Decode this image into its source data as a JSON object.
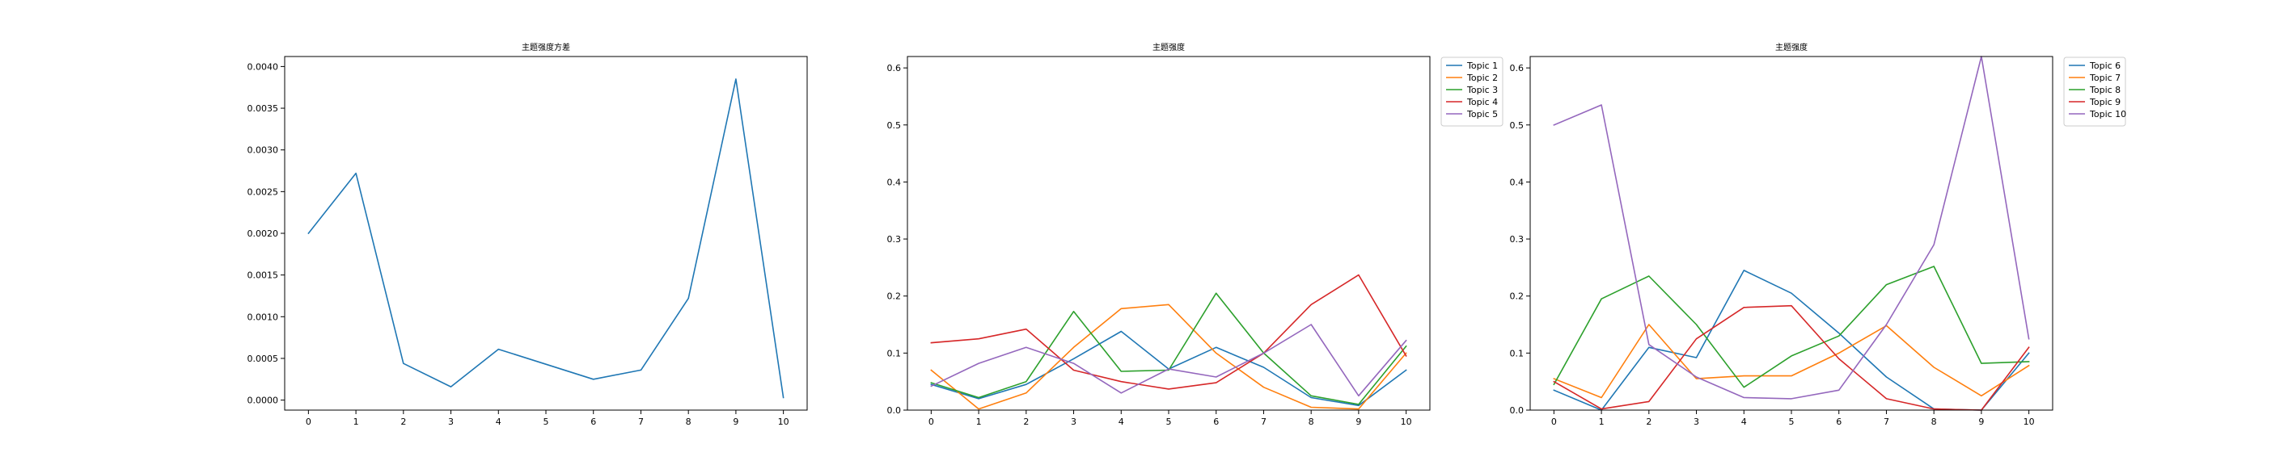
{
  "chart_data": [
    {
      "type": "line",
      "title": "主题强度方差",
      "xlabel": "",
      "ylabel": "",
      "x": [
        0,
        1,
        2,
        3,
        4,
        5,
        6,
        7,
        8,
        9,
        10
      ],
      "xticks": [
        "0",
        "1",
        "2",
        "3",
        "4",
        "5",
        "6",
        "7",
        "8",
        "9",
        "10"
      ],
      "yticks": [
        "0.0000",
        "0.0005",
        "0.0010",
        "0.0015",
        "0.0020",
        "0.0025",
        "0.0030",
        "0.0035",
        "0.0040"
      ],
      "ytick_values": [
        0,
        0.0005,
        0.001,
        0.0015,
        0.002,
        0.0025,
        0.003,
        0.0035,
        0.004
      ],
      "xlim": [
        -0.5,
        10.5
      ],
      "ylim": [
        -0.00012,
        0.00412
      ],
      "grid": false,
      "legend": null,
      "series": [
        {
          "color": "#1f77b4",
          "values": [
            0.002,
            0.00272,
            0.00044,
            0.00016,
            0.00061,
            0.00043,
            0.00025,
            0.00036,
            0.00122,
            0.00385,
            3e-05
          ]
        }
      ]
    },
    {
      "type": "line",
      "title": "主题强度",
      "xlabel": "",
      "ylabel": "",
      "x": [
        0,
        1,
        2,
        3,
        4,
        5,
        6,
        7,
        8,
        9,
        10
      ],
      "xticks": [
        "0",
        "1",
        "2",
        "3",
        "4",
        "5",
        "6",
        "7",
        "8",
        "9",
        "10"
      ],
      "yticks": [
        "0.0",
        "0.1",
        "0.2",
        "0.3",
        "0.4",
        "0.5",
        "0.6"
      ],
      "ytick_values": [
        0,
        0.1,
        0.2,
        0.3,
        0.4,
        0.5,
        0.6
      ],
      "xlim": [
        -0.5,
        10.5
      ],
      "ylim": [
        0,
        0.62
      ],
      "grid": false,
      "legend": "outside-top-right",
      "series": [
        {
          "name": "Topic 1",
          "color": "#1f77b4",
          "values": [
            0.045,
            0.02,
            0.045,
            0.09,
            0.138,
            0.072,
            0.11,
            0.075,
            0.022,
            0.008,
            0.07
          ]
        },
        {
          "name": "Topic 2",
          "color": "#ff7f0e",
          "values": [
            0.07,
            0.002,
            0.03,
            0.11,
            0.178,
            0.185,
            0.1,
            0.04,
            0.005,
            0.002,
            0.1
          ]
        },
        {
          "name": "Topic 3",
          "color": "#2ca02c",
          "values": [
            0.048,
            0.022,
            0.05,
            0.173,
            0.068,
            0.07,
            0.205,
            0.1,
            0.025,
            0.01,
            0.112
          ]
        },
        {
          "name": "Topic 4",
          "color": "#d62728",
          "values": [
            0.118,
            0.125,
            0.142,
            0.07,
            0.05,
            0.037,
            0.048,
            0.1,
            0.185,
            0.237,
            0.095
          ]
        },
        {
          "name": "Topic 5",
          "color": "#9467bd",
          "values": [
            0.042,
            0.082,
            0.11,
            0.082,
            0.03,
            0.072,
            0.058,
            0.1,
            0.15,
            0.025,
            0.122
          ]
        }
      ]
    },
    {
      "type": "line",
      "title": "主题强度",
      "xlabel": "",
      "ylabel": "",
      "x": [
        0,
        1,
        2,
        3,
        4,
        5,
        6,
        7,
        8,
        9,
        10
      ],
      "xticks": [
        "0",
        "1",
        "2",
        "3",
        "4",
        "5",
        "6",
        "7",
        "8",
        "9",
        "10"
      ],
      "yticks": [
        "0.0",
        "0.1",
        "0.2",
        "0.3",
        "0.4",
        "0.5",
        "0.6"
      ],
      "ytick_values": [
        0,
        0.1,
        0.2,
        0.3,
        0.4,
        0.5,
        0.6
      ],
      "xlim": [
        -0.5,
        10.5
      ],
      "ylim": [
        0,
        0.62
      ],
      "grid": false,
      "legend": "outside-top-right",
      "series": [
        {
          "name": "Topic 6",
          "color": "#1f77b4",
          "values": [
            0.035,
            0.0,
            0.11,
            0.092,
            0.245,
            0.205,
            0.135,
            0.058,
            0.002,
            0.0,
            0.1
          ]
        },
        {
          "name": "Topic 7",
          "color": "#ff7f0e",
          "values": [
            0.055,
            0.022,
            0.15,
            0.055,
            0.06,
            0.06,
            0.1,
            0.148,
            0.075,
            0.025,
            0.078
          ]
        },
        {
          "name": "Topic 8",
          "color": "#2ca02c",
          "values": [
            0.045,
            0.195,
            0.235,
            0.15,
            0.04,
            0.095,
            0.13,
            0.22,
            0.252,
            0.082,
            0.085
          ]
        },
        {
          "name": "Topic 9",
          "color": "#d62728",
          "values": [
            0.05,
            0.002,
            0.015,
            0.125,
            0.18,
            0.183,
            0.09,
            0.02,
            0.002,
            0.0,
            0.11
          ]
        },
        {
          "name": "Topic 10",
          "color": "#9467bd",
          "values": [
            0.5,
            0.535,
            0.115,
            0.058,
            0.022,
            0.02,
            0.035,
            0.15,
            0.29,
            0.62,
            0.125
          ]
        }
      ]
    }
  ]
}
